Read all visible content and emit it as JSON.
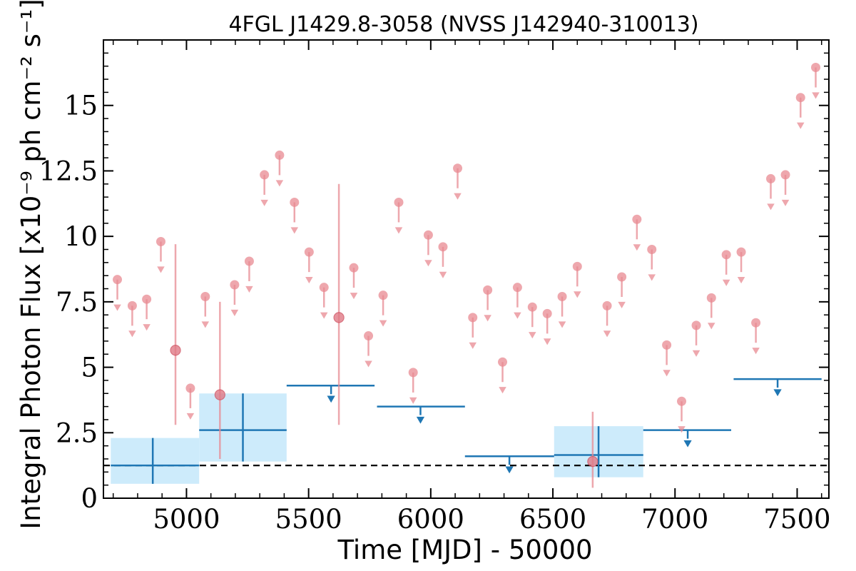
{
  "chart_data": {
    "type": "scatter",
    "title": "4FGL J1429.8-3058 (NVSS J142940-310013)",
    "xlabel": "Time [MJD] - 50000",
    "ylabel": "Integral Photon Flux [x10⁻⁹ ph cm⁻² s⁻¹]",
    "xlim": [
      4660,
      7630
    ],
    "ylim": [
      0,
      17.5
    ],
    "x_ticks": [
      5000,
      5500,
      6000,
      6500,
      7000,
      7500
    ],
    "x_tick_labels": [
      "5000",
      "5500",
      "6000",
      "6500",
      "7000",
      "7500"
    ],
    "y_ticks": [
      0,
      2.5,
      5,
      7.5,
      10,
      12.5,
      15
    ],
    "y_tick_labels": [
      "0",
      "2.5",
      "5",
      "7.5",
      "10",
      "12.5",
      "15"
    ],
    "grid": false,
    "reference_line": {
      "y": 1.25,
      "style": "dashed",
      "color": "#000000"
    },
    "colors": {
      "monthly": "#e88a92",
      "yearly": "#1f77b4",
      "band": "#cdebfb"
    },
    "series": [
      {
        "detections": [
          {
            "x": 4955,
            "y": 5.65,
            "ylo": 2.8,
            "yhi": 9.7
          },
          {
            "x": 5137,
            "y": 3.95,
            "ylo": 1.5,
            "yhi": 7.5
          },
          {
            "x": 5624,
            "y": 6.9,
            "ylo": 2.8,
            "yhi": 12.0
          },
          {
            "x": 6663,
            "y": 1.4,
            "ylo": 0.4,
            "yhi": 3.3
          }
        ],
        "upper_limits": [
          {
            "x": 4717,
            "y": 8.35
          },
          {
            "x": 4778,
            "y": 7.35
          },
          {
            "x": 4837,
            "y": 7.6
          },
          {
            "x": 4895,
            "y": 9.8
          },
          {
            "x": 5016,
            "y": 4.2
          },
          {
            "x": 5077,
            "y": 7.7
          },
          {
            "x": 5197,
            "y": 8.15
          },
          {
            "x": 5257,
            "y": 9.05
          },
          {
            "x": 5319,
            "y": 12.35
          },
          {
            "x": 5381,
            "y": 13.1
          },
          {
            "x": 5442,
            "y": 11.3
          },
          {
            "x": 5502,
            "y": 9.4
          },
          {
            "x": 5563,
            "y": 8.05
          },
          {
            "x": 5685,
            "y": 8.8
          },
          {
            "x": 5745,
            "y": 6.2
          },
          {
            "x": 5805,
            "y": 7.75
          },
          {
            "x": 5869,
            "y": 11.3
          },
          {
            "x": 5928,
            "y": 4.8
          },
          {
            "x": 5990,
            "y": 10.05
          },
          {
            "x": 6050,
            "y": 9.6
          },
          {
            "x": 6110,
            "y": 12.6
          },
          {
            "x": 6172,
            "y": 6.9
          },
          {
            "x": 6233,
            "y": 7.95
          },
          {
            "x": 6294,
            "y": 5.2
          },
          {
            "x": 6355,
            "y": 8.05
          },
          {
            "x": 6416,
            "y": 7.3
          },
          {
            "x": 6477,
            "y": 7.05
          },
          {
            "x": 6538,
            "y": 7.7
          },
          {
            "x": 6600,
            "y": 8.85
          },
          {
            "x": 6722,
            "y": 7.35
          },
          {
            "x": 6782,
            "y": 8.45
          },
          {
            "x": 6844,
            "y": 10.65
          },
          {
            "x": 6905,
            "y": 9.5
          },
          {
            "x": 6966,
            "y": 5.85
          },
          {
            "x": 7027,
            "y": 3.7
          },
          {
            "x": 7087,
            "y": 6.6
          },
          {
            "x": 7149,
            "y": 7.65
          },
          {
            "x": 7210,
            "y": 9.3
          },
          {
            "x": 7271,
            "y": 9.4
          },
          {
            "x": 7331,
            "y": 6.7
          },
          {
            "x": 7392,
            "y": 12.2
          },
          {
            "x": 7452,
            "y": 12.35
          },
          {
            "x": 7514,
            "y": 15.3
          },
          {
            "x": 7576,
            "y": 16.45
          }
        ]
      },
      {
        "detections": [
          {
            "x": 4862,
            "xlo": 4690,
            "xhi": 5052,
            "y": 1.25,
            "ylo": 0.55,
            "yhi": 2.3
          },
          {
            "x": 5231,
            "xlo": 5052,
            "xhi": 5410,
            "y": 2.6,
            "ylo": 1.4,
            "yhi": 4.0
          },
          {
            "x": 6687,
            "xlo": 6505,
            "xhi": 6870,
            "y": 1.65,
            "ylo": 0.8,
            "yhi": 2.75
          }
        ],
        "upper_limits": [
          {
            "x": 5592,
            "xlo": 5410,
            "xhi": 5770,
            "y": 4.3
          },
          {
            "x": 5958,
            "xlo": 5780,
            "xhi": 6140,
            "y": 3.5
          },
          {
            "x": 6322,
            "xlo": 6140,
            "xhi": 6505,
            "y": 1.6
          },
          {
            "x": 7052,
            "xlo": 6870,
            "xhi": 7230,
            "y": 2.6
          },
          {
            "x": 7420,
            "xlo": 7240,
            "xhi": 7600,
            "y": 4.55
          }
        ]
      }
    ]
  }
}
